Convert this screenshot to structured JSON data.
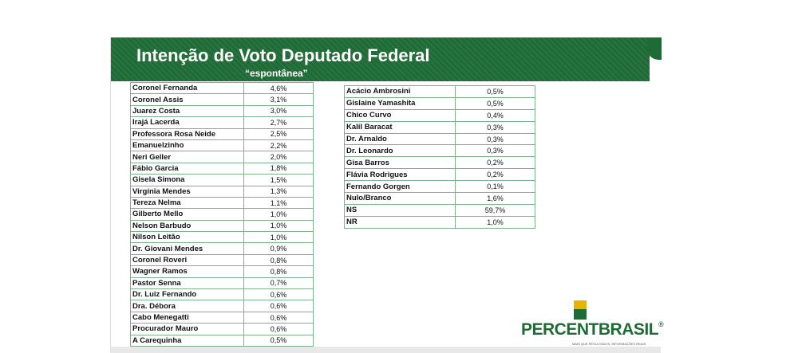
{
  "header": {
    "title": "Intenção de Voto Deputado Federal",
    "subtitle": "“espontânea”"
  },
  "tables": [
    {
      "rows": [
        [
          "Coronel Fernanda",
          "4,6%"
        ],
        [
          "Coronel Assis",
          "3,1%"
        ],
        [
          "Juarez Costa",
          "3,0%"
        ],
        [
          "Irajá Lacerda",
          "2,7%"
        ],
        [
          "Professora Rosa Neide",
          "2,5%"
        ],
        [
          "Emanuelzinho",
          "2,2%"
        ],
        [
          "Neri Geller",
          "2,0%"
        ],
        [
          "Fábio Garcia",
          "1,8%"
        ],
        [
          "Gisela Simona",
          "1,5%"
        ],
        [
          "Virgínia Mendes",
          "1,3%"
        ],
        [
          "Tereza Nelma",
          "1,1%"
        ],
        [
          "Gilberto Mello",
          "1,0%"
        ],
        [
          "Nelson Barbudo",
          "1,0%"
        ],
        [
          "Nilson Leitão",
          "1,0%"
        ],
        [
          "Dr. Giovani Mendes",
          "0,9%"
        ],
        [
          "Coronel Roveri",
          "0,8%"
        ],
        [
          "Wagner Ramos",
          "0,8%"
        ],
        [
          "Pastor Senna",
          "0,7%"
        ],
        [
          "Dr. Luiz Fernando",
          "0,6%"
        ],
        [
          "Dra. Débora",
          "0,6%"
        ],
        [
          "Cabo Menegatti",
          "0,6%"
        ],
        [
          "Procurador Mauro",
          "0,6%"
        ],
        [
          "A Carequinha",
          "0,5%"
        ]
      ]
    },
    {
      "rows": [
        [
          "Acácio Ambrosini",
          "0,5%"
        ],
        [
          "Gislaine Yamashita",
          "0,5%"
        ],
        [
          "Chico Curvo",
          "0,4%"
        ],
        [
          "Kalil Baracat",
          "0,3%"
        ],
        [
          "Dr. Arnaldo",
          "0,3%"
        ],
        [
          "Dr. Leonardo",
          "0,3%"
        ],
        [
          "Gisa Barros",
          "0,2%"
        ],
        [
          "Flávia Rodrigues",
          "0,2%"
        ],
        [
          "Fernando Gorgen",
          "0,1%"
        ],
        [
          "Nulo/Branco",
          "1,6%"
        ],
        [
          "NS",
          "59,7%"
        ],
        [
          "NR",
          "1,0%"
        ]
      ]
    }
  ],
  "logo": {
    "brand_a": "PERCENT",
    "brand_b": "BRASIL",
    "mark": "®",
    "tagline": "MAIS QUE RESULTADOS, INFORMAÇÕES REAIS"
  }
}
